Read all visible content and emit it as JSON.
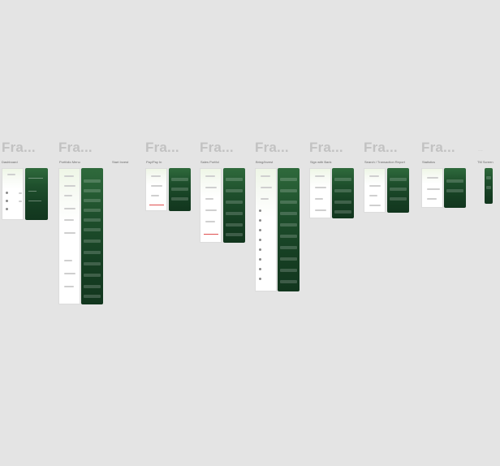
{
  "canvas": {
    "background": "#e4e4e4"
  },
  "colors": {
    "title_gray": "#c2c2c2",
    "dark_green_top": "#2f6a3c",
    "dark_green_bottom": "#12361e",
    "light_green_tint": "#eef6e6",
    "accent_red": "#e05050"
  },
  "frames": [
    {
      "title": "Fra...",
      "label": "Dashboard"
    },
    {
      "title": "Fra...",
      "label": "Portfolio Menu"
    },
    {
      "title": "",
      "label": "Start Invest"
    },
    {
      "title": "Fra...",
      "label": "Pay/Pay In"
    },
    {
      "title": "Fra...",
      "label": "Sales Portfol"
    },
    {
      "title": "Fra...",
      "label": "Bring/Invest"
    },
    {
      "title": "Fra...",
      "label": "Sign with Bank"
    },
    {
      "title": "Fra...",
      "label": "Search / Transaction Report"
    },
    {
      "title": "Fra...",
      "label": "Statistics"
    },
    {
      "title": "...",
      "label": "TM Screen"
    }
  ]
}
